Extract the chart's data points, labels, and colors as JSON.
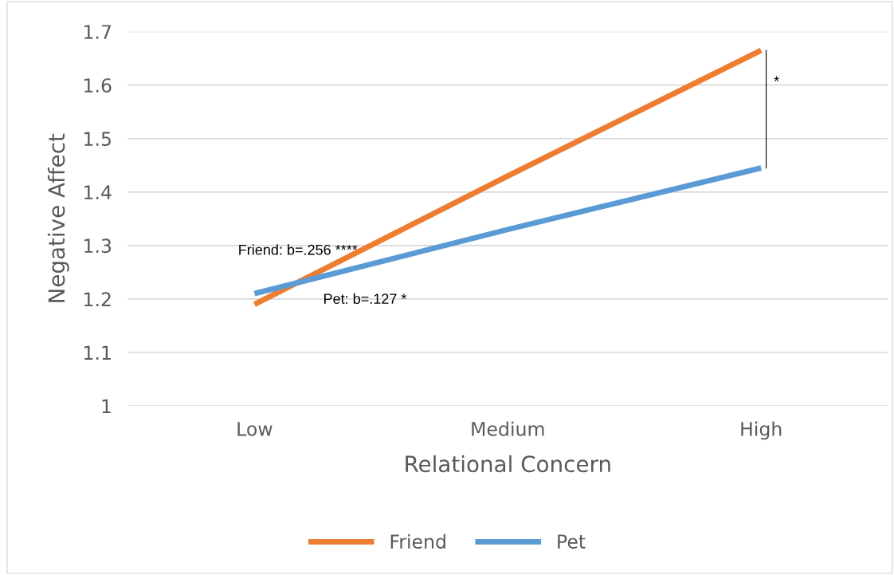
{
  "chart_data": {
    "type": "line",
    "xlabel": "Relational Concern",
    "ylabel": "Negative Affect",
    "categories": [
      "Low",
      "Medium",
      "High"
    ],
    "series": [
      {
        "name": "Friend",
        "color": "#ed7d31",
        "values": [
          1.19,
          1.43,
          1.665
        ]
      },
      {
        "name": "Pet",
        "color": "#5b9bd5",
        "values": [
          1.21,
          1.33,
          1.445
        ]
      }
    ],
    "ylim": [
      1,
      1.7
    ],
    "yticks": [
      1,
      1.1,
      1.2,
      1.3,
      1.4,
      1.5,
      1.6,
      1.7
    ],
    "grid": "y",
    "legend": "bottom",
    "marker": "none",
    "line_style": "solid",
    "annotations": [
      "Friend: b=.256 ****",
      "Pet: b=.127 *",
      "*"
    ]
  }
}
